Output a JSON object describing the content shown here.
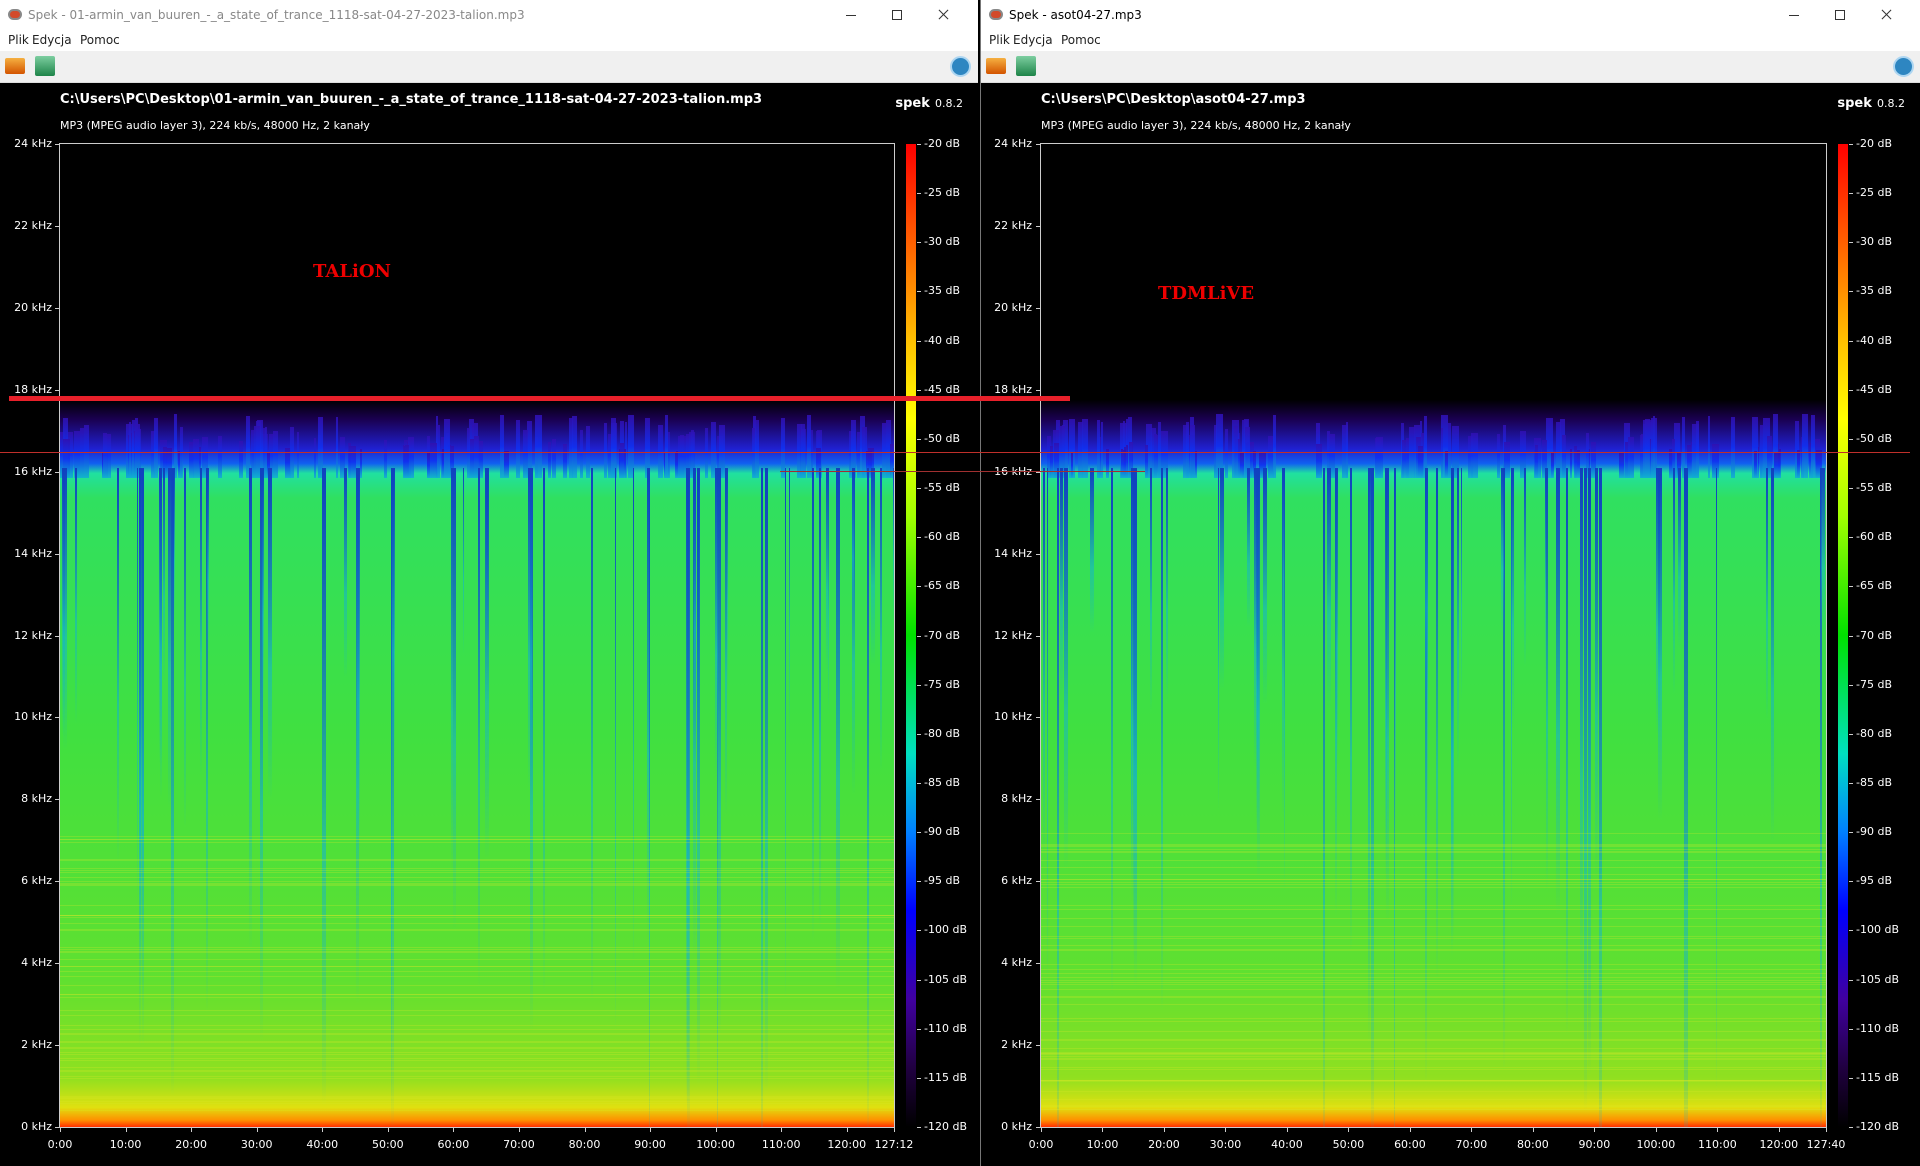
{
  "windows": [
    {
      "title": "Spek - 01-armin_van_buuren_-_a_state_of_trance_1118-sat-04-27-2023-talion.mp3",
      "menu": [
        "Plik",
        "Edycja",
        "Pomoc"
      ],
      "file": "C:\\Users\\PC\\Desktop\\01-armin_van_buuren_-_a_state_of_trance_1118-sat-04-27-2023-talion.mp3",
      "info": "MP3 (MPEG audio layer 3), 224 kb/s, 48000 Hz, 2 kanały",
      "brand": "spek",
      "version": "0.8.2",
      "freq_labels": [
        "24 kHz",
        "22 kHz",
        "20 kHz",
        "18 kHz",
        "16 kHz",
        "14 kHz",
        "12 kHz",
        "10 kHz",
        "8 kHz",
        "6 kHz",
        "4 kHz",
        "2 kHz",
        "0 kHz"
      ],
      "time_labels": [
        "0:00",
        "10:00",
        "20:00",
        "30:00",
        "40:00",
        "50:00",
        "60:00",
        "70:00",
        "80:00",
        "90:00",
        "100:00",
        "110:00",
        "120:00",
        "127:12"
      ],
      "db_labels": [
        "-20 dB",
        "-25 dB",
        "-30 dB",
        "-35 dB",
        "-40 dB",
        "-45 dB",
        "-50 dB",
        "-55 dB",
        "-60 dB",
        "-65 dB",
        "-70 dB",
        "-75 dB",
        "-80 dB",
        "-85 dB",
        "-90 dB",
        "-95 dB",
        "-100 dB",
        "-105 dB",
        "-110 dB",
        "-115 dB",
        "-120 dB"
      ],
      "annotation": "TALiON"
    },
    {
      "title": "Spek - asot04-27.mp3",
      "menu": [
        "Plik",
        "Edycja",
        "Pomoc"
      ],
      "file": "C:\\Users\\PC\\Desktop\\asot04-27.mp3",
      "info": "MP3 (MPEG audio layer 3), 224 kb/s, 48000 Hz, 2 kanały",
      "brand": "spek",
      "version": "0.8.2",
      "freq_labels": [
        "24 kHz",
        "22 kHz",
        "20 kHz",
        "18 kHz",
        "16 kHz",
        "14 kHz",
        "12 kHz",
        "10 kHz",
        "8 kHz",
        "6 kHz",
        "4 kHz",
        "2 kHz",
        "0 kHz"
      ],
      "time_labels": [
        "0:00",
        "10:00",
        "20:00",
        "30:00",
        "40:00",
        "50:00",
        "60:00",
        "70:00",
        "80:00",
        "90:00",
        "100:00",
        "110:00",
        "120:00",
        "127:40"
      ],
      "db_labels": [
        "-20 dB",
        "-25 dB",
        "-30 dB",
        "-35 dB",
        "-40 dB",
        "-45 dB",
        "-50 dB",
        "-55 dB",
        "-60 dB",
        "-65 dB",
        "-70 dB",
        "-75 dB",
        "-80 dB",
        "-85 dB",
        "-90 dB",
        "-95 dB",
        "-100 dB",
        "-105 dB",
        "-110 dB",
        "-115 dB",
        "-120 dB"
      ],
      "annotation": "TDMLiVE"
    }
  ]
}
